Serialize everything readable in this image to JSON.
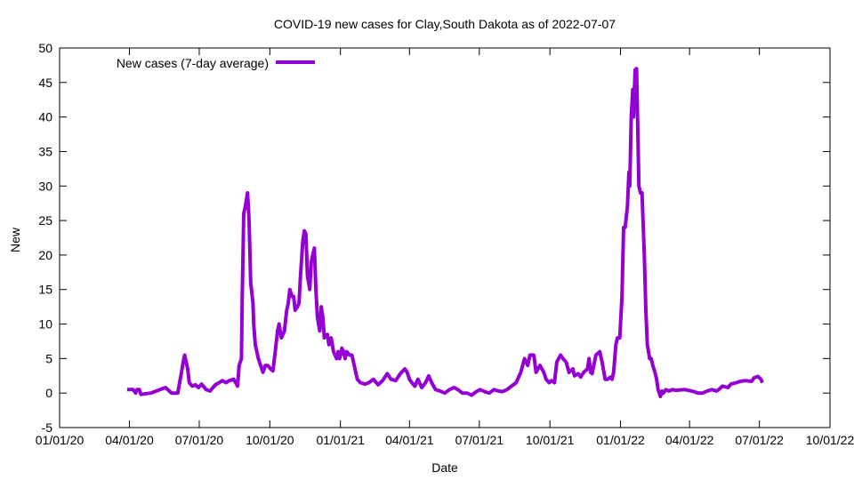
{
  "chart_data": {
    "type": "line",
    "title": "COVID-19 new cases for Clay,South Dakota as of 2022-07-07",
    "xlabel": "Date",
    "ylabel": "New",
    "x_origin": "2020-01-01",
    "xlim": [
      0,
      1004
    ],
    "ylim": [
      -5,
      50
    ],
    "yticks": [
      -5,
      0,
      5,
      10,
      15,
      20,
      25,
      30,
      35,
      40,
      45,
      50
    ],
    "xticks": [
      {
        "x": 0,
        "label": "01/01/20"
      },
      {
        "x": 91,
        "label": "04/01/20"
      },
      {
        "x": 182,
        "label": "07/01/20"
      },
      {
        "x": 274,
        "label": "10/01/20"
      },
      {
        "x": 366,
        "label": "01/01/21"
      },
      {
        "x": 456,
        "label": "04/01/21"
      },
      {
        "x": 547,
        "label": "07/01/21"
      },
      {
        "x": 639,
        "label": "10/01/21"
      },
      {
        "x": 731,
        "label": "01/01/22"
      },
      {
        "x": 821,
        "label": "04/01/22"
      },
      {
        "x": 912,
        "label": "07/01/22"
      },
      {
        "x": 1004,
        "label": "10/01/22"
      }
    ],
    "grid": false,
    "legend_position": "top-left",
    "series": [
      {
        "name": "New cases (7-day average)",
        "color": "#9400d3",
        "points": [
          [
            88,
            0.5
          ],
          [
            96,
            0.5
          ],
          [
            99,
            0
          ],
          [
            101,
            0.5
          ],
          [
            104,
            0.5
          ],
          [
            106,
            -0.2
          ],
          [
            119,
            0
          ],
          [
            131,
            0.5
          ],
          [
            138,
            0.8
          ],
          [
            143,
            0.3
          ],
          [
            146,
            0
          ],
          [
            154,
            0
          ],
          [
            158,
            2.5
          ],
          [
            162,
            5
          ],
          [
            163,
            5.5
          ],
          [
            167,
            3.5
          ],
          [
            169,
            1.5
          ],
          [
            173,
            1
          ],
          [
            177,
            1.2
          ],
          [
            181,
            0.8
          ],
          [
            185,
            1.3
          ],
          [
            191,
            0.5
          ],
          [
            196,
            0.3
          ],
          [
            203,
            1.2
          ],
          [
            208,
            1.5
          ],
          [
            212,
            1.8
          ],
          [
            217,
            1.5
          ],
          [
            221,
            1.8
          ],
          [
            227,
            2
          ],
          [
            232,
            1
          ],
          [
            234,
            4
          ],
          [
            237,
            5
          ],
          [
            238,
            14
          ],
          [
            240,
            26
          ],
          [
            242,
            27
          ],
          [
            245,
            29
          ],
          [
            247,
            25
          ],
          [
            249,
            16
          ],
          [
            252,
            13
          ],
          [
            253,
            10
          ],
          [
            255,
            7
          ],
          [
            259,
            5
          ],
          [
            262,
            4
          ],
          [
            265,
            3
          ],
          [
            268,
            4
          ],
          [
            271,
            4
          ],
          [
            275,
            3.5
          ],
          [
            278,
            3.2
          ],
          [
            281,
            6
          ],
          [
            284,
            9
          ],
          [
            286,
            10
          ],
          [
            289,
            8
          ],
          [
            291,
            8.5
          ],
          [
            293,
            9
          ],
          [
            296,
            12
          ],
          [
            298,
            13
          ],
          [
            300,
            15
          ],
          [
            303,
            14
          ],
          [
            305,
            14
          ],
          [
            307,
            12
          ],
          [
            310,
            12.5
          ],
          [
            312,
            13
          ],
          [
            314,
            17
          ],
          [
            317,
            22
          ],
          [
            319,
            23.5
          ],
          [
            321,
            23
          ],
          [
            323,
            17
          ],
          [
            326,
            15
          ],
          [
            328,
            19
          ],
          [
            330,
            20
          ],
          [
            332,
            21
          ],
          [
            334,
            15
          ],
          [
            336,
            11
          ],
          [
            339,
            9
          ],
          [
            341,
            12.5
          ],
          [
            343,
            11
          ],
          [
            345,
            8
          ],
          [
            349,
            8.5
          ],
          [
            351,
            7
          ],
          [
            354,
            8
          ],
          [
            357,
            6
          ],
          [
            361,
            5
          ],
          [
            363,
            6
          ],
          [
            365,
            5
          ],
          [
            368,
            6.5
          ],
          [
            370,
            6
          ],
          [
            372,
            5
          ],
          [
            374,
            6
          ],
          [
            378,
            5.5
          ],
          [
            381,
            5.5
          ],
          [
            384,
            4
          ],
          [
            386,
            3
          ],
          [
            388,
            2
          ],
          [
            392,
            1.5
          ],
          [
            398,
            1.3
          ],
          [
            403,
            1.5
          ],
          [
            409,
            2
          ],
          [
            415,
            1.2
          ],
          [
            421,
            1.8
          ],
          [
            427,
            2.8
          ],
          [
            432,
            2
          ],
          [
            438,
            1.8
          ],
          [
            444,
            2.8
          ],
          [
            450,
            3.5
          ],
          [
            453,
            3
          ],
          [
            456,
            2
          ],
          [
            459,
            1.5
          ],
          [
            463,
            1
          ],
          [
            467,
            2
          ],
          [
            472,
            0.8
          ],
          [
            477,
            1.5
          ],
          [
            481,
            2.5
          ],
          [
            485,
            1.5
          ],
          [
            490,
            0.5
          ],
          [
            496,
            0.3
          ],
          [
            502,
            0
          ],
          [
            508,
            0.5
          ],
          [
            514,
            0.8
          ],
          [
            519,
            0.5
          ],
          [
            525,
            0
          ],
          [
            531,
            0
          ],
          [
            537,
            -0.3
          ],
          [
            543,
            0.2
          ],
          [
            548,
            0.5
          ],
          [
            554,
            0.2
          ],
          [
            560,
            0
          ],
          [
            566,
            0.5
          ],
          [
            572,
            0.3
          ],
          [
            577,
            0.2
          ],
          [
            583,
            0.5
          ],
          [
            589,
            1
          ],
          [
            595,
            1.5
          ],
          [
            601,
            3
          ],
          [
            606,
            5
          ],
          [
            610,
            4
          ],
          [
            613,
            5.5
          ],
          [
            618,
            5.5
          ],
          [
            621,
            3
          ],
          [
            626,
            4
          ],
          [
            631,
            3
          ],
          [
            634,
            2
          ],
          [
            638,
            1.5
          ],
          [
            641,
            1.8
          ],
          [
            645,
            1.5
          ],
          [
            648,
            4.5
          ],
          [
            653,
            5.5
          ],
          [
            656,
            5
          ],
          [
            660,
            4.5
          ],
          [
            664,
            3
          ],
          [
            669,
            3.5
          ],
          [
            671,
            2.5
          ],
          [
            676,
            2.8
          ],
          [
            679,
            2.3
          ],
          [
            683,
            3
          ],
          [
            688,
            3.5
          ],
          [
            690,
            5
          ],
          [
            692,
            3
          ],
          [
            694,
            2.8
          ],
          [
            699,
            5.5
          ],
          [
            704,
            6
          ],
          [
            707,
            4.5
          ],
          [
            711,
            2
          ],
          [
            714,
            2
          ],
          [
            718,
            2.3
          ],
          [
            720,
            2
          ],
          [
            722,
            3
          ],
          [
            725,
            7
          ],
          [
            727,
            8
          ],
          [
            730,
            8
          ],
          [
            733,
            14
          ],
          [
            735,
            24
          ],
          [
            737,
            24
          ],
          [
            740,
            27
          ],
          [
            742,
            32
          ],
          [
            743,
            30
          ],
          [
            745,
            40
          ],
          [
            747,
            44
          ],
          [
            748,
            40
          ],
          [
            749,
            43
          ],
          [
            750,
            46.8
          ],
          [
            752,
            47
          ],
          [
            755,
            30
          ],
          [
            757,
            29
          ],
          [
            759,
            29
          ],
          [
            762,
            20
          ],
          [
            764,
            12
          ],
          [
            766,
            7
          ],
          [
            769,
            5
          ],
          [
            771,
            5
          ],
          [
            773,
            4
          ],
          [
            776,
            3
          ],
          [
            778,
            2
          ],
          [
            780,
            0.5
          ],
          [
            783,
            -0.5
          ],
          [
            785,
            0.3
          ],
          [
            787,
            0
          ],
          [
            790,
            0.5
          ],
          [
            794,
            0.3
          ],
          [
            799,
            0.5
          ],
          [
            803,
            0.4
          ],
          [
            815,
            0.5
          ],
          [
            827,
            0.2
          ],
          [
            832,
            0
          ],
          [
            838,
            0
          ],
          [
            844,
            0.3
          ],
          [
            850,
            0.5
          ],
          [
            856,
            0.3
          ],
          [
            859,
            0.5
          ],
          [
            864,
            1
          ],
          [
            871,
            0.8
          ],
          [
            875,
            1.3
          ],
          [
            882,
            1.5
          ],
          [
            887,
            1.7
          ],
          [
            894,
            1.8
          ],
          [
            902,
            1.7
          ],
          [
            905,
            2.2
          ],
          [
            910,
            2.4
          ],
          [
            914,
            2.0
          ],
          [
            916,
            1.5
          ]
        ]
      }
    ]
  }
}
